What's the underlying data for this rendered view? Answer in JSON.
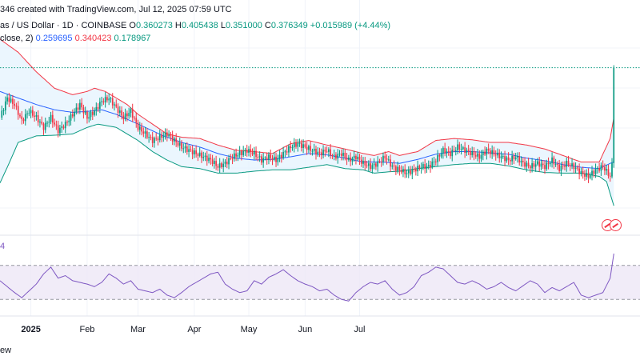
{
  "header": {
    "line1": "346 created with TradingView.com, Jul 12, 2025 07:59 UTC",
    "symbol": "as / US Dollar · 1D · COINBASE",
    "o_label": "O",
    "o": "0.360273",
    "h_label": "H",
    "h": "0.405438",
    "l_label": "L",
    "l": "0.351000",
    "c_label": "C",
    "c": "0.376349",
    "change": "+0.015989 (+4.44%)",
    "bb_label": "close, 2)",
    "bb_basis": "0.259695",
    "bb_upper": "0.340423",
    "bb_lower": "0.178967"
  },
  "rsi_label": "4",
  "watermark": "ew",
  "colors": {
    "up": "#089981",
    "down": "#f23645",
    "basis": "#2962ff",
    "upper_band": "#f23645",
    "lower_band": "#089981",
    "band_fill": "#e3f2fd",
    "rsi_line": "#7e57c2",
    "rsi_fill": "#ede7f6",
    "grid": "#f0f3fa"
  },
  "icons": [
    "flag-badge-icon",
    "flag-badge-icon"
  ],
  "chart_data": {
    "type": "candlestick",
    "x_ticks": [
      "2025",
      "Feb",
      "Mar",
      "Apr",
      "May",
      "Jun",
      "Jul"
    ],
    "last_close": 0.376349,
    "bollinger": {
      "basis": 0.259695,
      "upper": 0.340423,
      "lower": 0.178967
    },
    "price_path": [
      [
        0,
        0.3
      ],
      [
        4,
        0.33
      ],
      [
        8,
        0.32
      ],
      [
        12,
        0.295
      ],
      [
        16,
        0.31
      ],
      [
        20,
        0.3
      ],
      [
        24,
        0.285
      ],
      [
        28,
        0.3
      ],
      [
        32,
        0.28
      ],
      [
        36,
        0.29
      ],
      [
        40,
        0.305
      ],
      [
        44,
        0.32
      ],
      [
        48,
        0.3
      ],
      [
        52,
        0.31
      ],
      [
        56,
        0.325
      ],
      [
        60,
        0.33
      ],
      [
        64,
        0.315
      ],
      [
        68,
        0.3
      ],
      [
        72,
        0.31
      ],
      [
        76,
        0.285
      ],
      [
        80,
        0.275
      ],
      [
        84,
        0.265
      ],
      [
        88,
        0.27
      ],
      [
        92,
        0.275
      ],
      [
        96,
        0.265
      ],
      [
        100,
        0.255
      ],
      [
        104,
        0.25
      ],
      [
        108,
        0.245
      ],
      [
        112,
        0.24
      ],
      [
        116,
        0.235
      ],
      [
        120,
        0.225
      ],
      [
        124,
        0.23
      ],
      [
        128,
        0.24
      ],
      [
        132,
        0.245
      ],
      [
        136,
        0.25
      ],
      [
        140,
        0.245
      ],
      [
        144,
        0.235
      ],
      [
        148,
        0.24
      ],
      [
        152,
        0.235
      ],
      [
        156,
        0.245
      ],
      [
        160,
        0.255
      ],
      [
        164,
        0.26
      ],
      [
        168,
        0.255
      ],
      [
        172,
        0.25
      ],
      [
        176,
        0.245
      ],
      [
        180,
        0.25
      ],
      [
        184,
        0.24
      ],
      [
        188,
        0.245
      ],
      [
        192,
        0.235
      ],
      [
        196,
        0.24
      ],
      [
        200,
        0.23
      ],
      [
        204,
        0.225
      ],
      [
        208,
        0.23
      ],
      [
        212,
        0.24
      ],
      [
        216,
        0.225
      ],
      [
        220,
        0.22
      ],
      [
        224,
        0.215
      ],
      [
        228,
        0.22
      ],
      [
        232,
        0.225
      ],
      [
        236,
        0.225
      ],
      [
        240,
        0.235
      ],
      [
        244,
        0.25
      ],
      [
        248,
        0.245
      ],
      [
        252,
        0.255
      ],
      [
        256,
        0.25
      ],
      [
        260,
        0.245
      ],
      [
        264,
        0.24
      ],
      [
        268,
        0.25
      ],
      [
        272,
        0.245
      ],
      [
        276,
        0.24
      ],
      [
        280,
        0.235
      ],
      [
        284,
        0.24
      ],
      [
        288,
        0.23
      ],
      [
        292,
        0.225
      ],
      [
        296,
        0.23
      ],
      [
        300,
        0.225
      ],
      [
        304,
        0.235
      ],
      [
        308,
        0.222
      ],
      [
        312,
        0.23
      ],
      [
        316,
        0.225
      ],
      [
        320,
        0.215
      ],
      [
        324,
        0.21
      ],
      [
        328,
        0.22
      ],
      [
        332,
        0.225
      ],
      [
        336,
        0.21
      ],
      [
        338,
        0.245
      ]
    ],
    "upper_band_path": [
      [
        0,
        0.42
      ],
      [
        10,
        0.4
      ],
      [
        20,
        0.37
      ],
      [
        30,
        0.345
      ],
      [
        40,
        0.335
      ],
      [
        48,
        0.34
      ],
      [
        52,
        0.345
      ],
      [
        58,
        0.34
      ],
      [
        64,
        0.33
      ],
      [
        70,
        0.32
      ],
      [
        76,
        0.305
      ],
      [
        84,
        0.29
      ],
      [
        92,
        0.275
      ],
      [
        100,
        0.27
      ],
      [
        110,
        0.268
      ],
      [
        120,
        0.258
      ],
      [
        130,
        0.25
      ],
      [
        140,
        0.248
      ],
      [
        150,
        0.245
      ],
      [
        160,
        0.26
      ],
      [
        170,
        0.265
      ],
      [
        180,
        0.258
      ],
      [
        190,
        0.252
      ],
      [
        200,
        0.245
      ],
      [
        206,
        0.242
      ],
      [
        214,
        0.248
      ],
      [
        220,
        0.242
      ],
      [
        230,
        0.248
      ],
      [
        240,
        0.265
      ],
      [
        250,
        0.268
      ],
      [
        260,
        0.266
      ],
      [
        270,
        0.262
      ],
      [
        280,
        0.262
      ],
      [
        290,
        0.258
      ],
      [
        300,
        0.252
      ],
      [
        310,
        0.242
      ],
      [
        320,
        0.232
      ],
      [
        330,
        0.232
      ],
      [
        336,
        0.268
      ],
      [
        338,
        0.3
      ]
    ],
    "basis_path": [
      [
        0,
        0.34
      ],
      [
        10,
        0.33
      ],
      [
        20,
        0.32
      ],
      [
        30,
        0.312
      ],
      [
        40,
        0.308
      ],
      [
        50,
        0.31
      ],
      [
        56,
        0.312
      ],
      [
        64,
        0.305
      ],
      [
        72,
        0.295
      ],
      [
        80,
        0.285
      ],
      [
        90,
        0.272
      ],
      [
        100,
        0.262
      ],
      [
        110,
        0.255
      ],
      [
        120,
        0.245
      ],
      [
        130,
        0.238
      ],
      [
        140,
        0.235
      ],
      [
        150,
        0.236
      ],
      [
        160,
        0.24
      ],
      [
        170,
        0.245
      ],
      [
        180,
        0.243
      ],
      [
        190,
        0.238
      ],
      [
        200,
        0.232
      ],
      [
        210,
        0.232
      ],
      [
        220,
        0.23
      ],
      [
        230,
        0.236
      ],
      [
        240,
        0.244
      ],
      [
        250,
        0.248
      ],
      [
        260,
        0.248
      ],
      [
        270,
        0.246
      ],
      [
        280,
        0.244
      ],
      [
        290,
        0.238
      ],
      [
        300,
        0.234
      ],
      [
        310,
        0.228
      ],
      [
        320,
        0.224
      ],
      [
        330,
        0.222
      ],
      [
        336,
        0.23
      ],
      [
        338,
        0.232
      ]
    ],
    "lower_band_path": [
      [
        0,
        0.2
      ],
      [
        5,
        0.23
      ],
      [
        10,
        0.262
      ],
      [
        20,
        0.272
      ],
      [
        30,
        0.273
      ],
      [
        40,
        0.275
      ],
      [
        48,
        0.285
      ],
      [
        54,
        0.29
      ],
      [
        64,
        0.285
      ],
      [
        70,
        0.275
      ],
      [
        76,
        0.265
      ],
      [
        84,
        0.248
      ],
      [
        92,
        0.235
      ],
      [
        100,
        0.225
      ],
      [
        110,
        0.222
      ],
      [
        120,
        0.215
      ],
      [
        130,
        0.215
      ],
      [
        140,
        0.218
      ],
      [
        150,
        0.22
      ],
      [
        160,
        0.22
      ],
      [
        170,
        0.224
      ],
      [
        180,
        0.228
      ],
      [
        190,
        0.222
      ],
      [
        200,
        0.22
      ],
      [
        206,
        0.215
      ],
      [
        214,
        0.217
      ],
      [
        220,
        0.218
      ],
      [
        230,
        0.222
      ],
      [
        240,
        0.225
      ],
      [
        250,
        0.228
      ],
      [
        260,
        0.23
      ],
      [
        270,
        0.23
      ],
      [
        280,
        0.226
      ],
      [
        290,
        0.22
      ],
      [
        300,
        0.216
      ],
      [
        310,
        0.215
      ],
      [
        320,
        0.215
      ],
      [
        330,
        0.21
      ],
      [
        334,
        0.202
      ],
      [
        338,
        0.165
      ]
    ],
    "rsi_levels": {
      "upper": 70,
      "lower": 30
    },
    "rsi_path": [
      [
        0,
        52
      ],
      [
        4,
        45
      ],
      [
        8,
        38
      ],
      [
        12,
        32
      ],
      [
        16,
        40
      ],
      [
        20,
        48
      ],
      [
        24,
        60
      ],
      [
        28,
        68
      ],
      [
        32,
        55
      ],
      [
        36,
        58
      ],
      [
        40,
        52
      ],
      [
        44,
        50
      ],
      [
        48,
        48
      ],
      [
        52,
        45
      ],
      [
        56,
        50
      ],
      [
        60,
        60
      ],
      [
        64,
        55
      ],
      [
        68,
        48
      ],
      [
        72,
        52
      ],
      [
        76,
        42
      ],
      [
        80,
        40
      ],
      [
        84,
        38
      ],
      [
        88,
        42
      ],
      [
        92,
        35
      ],
      [
        96,
        32
      ],
      [
        100,
        38
      ],
      [
        104,
        45
      ],
      [
        108,
        50
      ],
      [
        112,
        55
      ],
      [
        116,
        60
      ],
      [
        120,
        62
      ],
      [
        124,
        48
      ],
      [
        128,
        42
      ],
      [
        132,
        38
      ],
      [
        136,
        40
      ],
      [
        140,
        52
      ],
      [
        144,
        48
      ],
      [
        148,
        56
      ],
      [
        152,
        60
      ],
      [
        156,
        65
      ],
      [
        160,
        58
      ],
      [
        164,
        52
      ],
      [
        168,
        48
      ],
      [
        172,
        45
      ],
      [
        176,
        40
      ],
      [
        180,
        42
      ],
      [
        184,
        35
      ],
      [
        188,
        30
      ],
      [
        192,
        28
      ],
      [
        196,
        38
      ],
      [
        200,
        45
      ],
      [
        204,
        50
      ],
      [
        208,
        48
      ],
      [
        212,
        52
      ],
      [
        216,
        42
      ],
      [
        220,
        35
      ],
      [
        224,
        38
      ],
      [
        228,
        45
      ],
      [
        232,
        58
      ],
      [
        236,
        62
      ],
      [
        240,
        68
      ],
      [
        244,
        66
      ],
      [
        248,
        58
      ],
      [
        252,
        50
      ],
      [
        256,
        48
      ],
      [
        260,
        52
      ],
      [
        264,
        48
      ],
      [
        268,
        42
      ],
      [
        272,
        45
      ],
      [
        276,
        50
      ],
      [
        280,
        44
      ],
      [
        284,
        40
      ],
      [
        288,
        46
      ],
      [
        292,
        52
      ],
      [
        296,
        48
      ],
      [
        300,
        38
      ],
      [
        304,
        44
      ],
      [
        308,
        40
      ],
      [
        312,
        45
      ],
      [
        316,
        50
      ],
      [
        320,
        35
      ],
      [
        324,
        32
      ],
      [
        328,
        35
      ],
      [
        332,
        38
      ],
      [
        336,
        55
      ],
      [
        338,
        84
      ]
    ]
  }
}
